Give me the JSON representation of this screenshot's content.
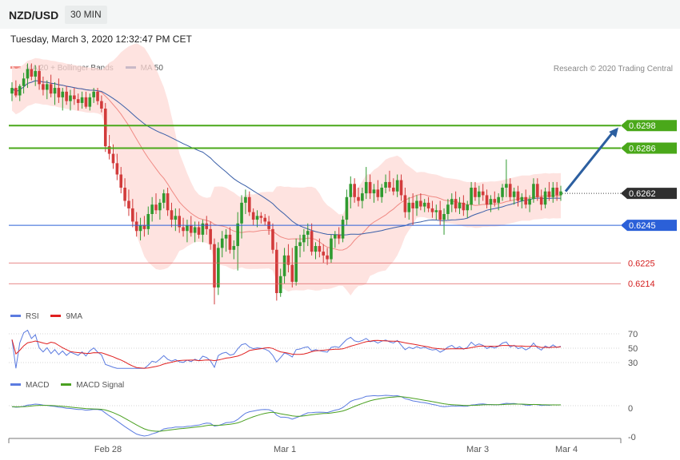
{
  "header": {
    "symbol": "NZD/USD",
    "timeframe": "30 MIN",
    "datetime": "Tuesday, March 3, 2020 12:32:47 PM CET",
    "credit": "Research © 2020 Trading Central"
  },
  "legends": {
    "price": [
      {
        "label": "MA 20 + Bollinger Bands",
        "color": "#f08a84"
      },
      {
        "label": "MA 50",
        "color": "#2c5a9a"
      }
    ],
    "rsi": [
      {
        "label": "RSI",
        "color": "#5b7be0"
      },
      {
        "label": "9MA",
        "color": "#e02020"
      }
    ],
    "macd": [
      {
        "label": "MACD",
        "color": "#5b7be0"
      },
      {
        "label": "MACD Signal",
        "color": "#4aa020"
      }
    ]
  },
  "colors": {
    "up": "#2f9a2f",
    "down": "#d23b3b",
    "bands": "#fdd9d6",
    "ma20": "#f08a84",
    "ma50": "#3a5fa8",
    "resistance": "#4aa81a",
    "support": "#2b60d8",
    "support_weak": "#e06060",
    "arrow": "#2c5fa0",
    "current": "#333333"
  },
  "chart_data": {
    "type": "candlestick",
    "x_tick_labels": [
      "Feb 28",
      "Mar 1",
      "Mar 3",
      "Mar 4"
    ],
    "price_ylim": [
      0.6195,
      0.6335
    ],
    "levels": [
      {
        "value": "0.6298",
        "kind": "resistance"
      },
      {
        "value": "0.6286",
        "kind": "resistance"
      },
      {
        "value": "0.6262",
        "kind": "current"
      },
      {
        "value": "0.6245",
        "kind": "support"
      },
      {
        "value": "0.6225",
        "kind": "support_weak"
      },
      {
        "value": "0.6214",
        "kind": "support_weak"
      }
    ],
    "forecast": {
      "from": 0.6263,
      "to": 0.6297,
      "direction": "up"
    },
    "rsi": {
      "levels": [
        "70",
        "50",
        "30"
      ],
      "ylim": [
        15,
        80
      ]
    },
    "macd": {
      "levels": [
        "0",
        "-0"
      ]
    },
    "candles": [
      [
        0.6315,
        0.6321,
        0.6311,
        0.6318
      ],
      [
        0.6318,
        0.6322,
        0.6313,
        0.6314
      ],
      [
        0.6314,
        0.632,
        0.6311,
        0.6319
      ],
      [
        0.6319,
        0.6326,
        0.6315,
        0.6323
      ],
      [
        0.6323,
        0.6331,
        0.6318,
        0.6328
      ],
      [
        0.6328,
        0.6331,
        0.6322,
        0.6324
      ],
      [
        0.6324,
        0.633,
        0.6319,
        0.6327
      ],
      [
        0.6327,
        0.633,
        0.6317,
        0.632
      ],
      [
        0.632,
        0.6324,
        0.6314,
        0.6317
      ],
      [
        0.6317,
        0.6322,
        0.6312,
        0.632
      ],
      [
        0.632,
        0.6325,
        0.6313,
        0.6315
      ],
      [
        0.6315,
        0.6321,
        0.6309,
        0.6318
      ],
      [
        0.6318,
        0.6323,
        0.631,
        0.6313
      ],
      [
        0.6313,
        0.6318,
        0.6306,
        0.6316
      ],
      [
        0.6316,
        0.6319,
        0.6309,
        0.6311
      ],
      [
        0.6311,
        0.6317,
        0.6306,
        0.6314
      ],
      [
        0.6314,
        0.6318,
        0.6309,
        0.6312
      ],
      [
        0.6312,
        0.6315,
        0.6306,
        0.631
      ],
      [
        0.631,
        0.6316,
        0.6307,
        0.6313
      ],
      [
        0.6313,
        0.6316,
        0.6307,
        0.6308
      ],
      [
        0.6308,
        0.6315,
        0.6306,
        0.6313
      ],
      [
        0.6313,
        0.6318,
        0.631,
        0.6316
      ],
      [
        0.6316,
        0.6318,
        0.6309,
        0.6311
      ],
      [
        0.6311,
        0.6314,
        0.6305,
        0.6307
      ],
      [
        0.6307,
        0.631,
        0.6284,
        0.6287
      ],
      [
        0.6287,
        0.6293,
        0.628,
        0.6283
      ],
      [
        0.6283,
        0.6288,
        0.6275,
        0.6278
      ],
      [
        0.6278,
        0.6283,
        0.6269,
        0.6272
      ],
      [
        0.6272,
        0.6276,
        0.6262,
        0.6265
      ],
      [
        0.6265,
        0.627,
        0.6255,
        0.6258
      ],
      [
        0.6258,
        0.6264,
        0.625,
        0.6254
      ],
      [
        0.6254,
        0.6259,
        0.6244,
        0.6247
      ],
      [
        0.6247,
        0.6252,
        0.6239,
        0.6242
      ],
      [
        0.6242,
        0.6249,
        0.6237,
        0.6245
      ],
      [
        0.6245,
        0.625,
        0.6239,
        0.6243
      ],
      [
        0.6243,
        0.6255,
        0.624,
        0.6251
      ],
      [
        0.6251,
        0.626,
        0.6247,
        0.6256
      ],
      [
        0.6256,
        0.6262,
        0.6251,
        0.6253
      ],
      [
        0.6253,
        0.6259,
        0.6248,
        0.6257
      ],
      [
        0.6257,
        0.6264,
        0.6254,
        0.6262
      ],
      [
        0.6262,
        0.6265,
        0.625,
        0.6253
      ],
      [
        0.6253,
        0.6257,
        0.6244,
        0.6248
      ],
      [
        0.6248,
        0.6254,
        0.6242,
        0.625
      ],
      [
        0.625,
        0.6254,
        0.6241,
        0.6244
      ],
      [
        0.6244,
        0.6249,
        0.6239,
        0.6242
      ],
      [
        0.6242,
        0.6248,
        0.6236,
        0.6245
      ],
      [
        0.6245,
        0.625,
        0.6239,
        0.6241
      ],
      [
        0.6241,
        0.6247,
        0.6236,
        0.6244
      ],
      [
        0.6244,
        0.6247,
        0.6238,
        0.624
      ],
      [
        0.624,
        0.6248,
        0.6236,
        0.6246
      ],
      [
        0.6246,
        0.625,
        0.624,
        0.6243
      ],
      [
        0.6243,
        0.6247,
        0.6232,
        0.6235
      ],
      [
        0.6235,
        0.6238,
        0.6203,
        0.6212
      ],
      [
        0.6212,
        0.6236,
        0.6208,
        0.6233
      ],
      [
        0.6233,
        0.6242,
        0.6228,
        0.6238
      ],
      [
        0.6238,
        0.6243,
        0.6231,
        0.624
      ],
      [
        0.624,
        0.6244,
        0.623,
        0.6232
      ],
      [
        0.6232,
        0.6237,
        0.6227,
        0.6234
      ],
      [
        0.6234,
        0.6252,
        0.6221,
        0.6246
      ],
      [
        0.6246,
        0.6261,
        0.6238,
        0.6257
      ],
      [
        0.6257,
        0.6264,
        0.6251,
        0.626
      ],
      [
        0.626,
        0.6263,
        0.625,
        0.6252
      ],
      [
        0.6252,
        0.6254,
        0.6245,
        0.6248
      ],
      [
        0.6248,
        0.6253,
        0.6244,
        0.625
      ],
      [
        0.625,
        0.6252,
        0.6246,
        0.6249
      ],
      [
        0.6249,
        0.6251,
        0.6245,
        0.6247
      ],
      [
        0.6247,
        0.625,
        0.624,
        0.6243
      ],
      [
        0.6243,
        0.6246,
        0.623,
        0.6232
      ],
      [
        0.6232,
        0.6236,
        0.6205,
        0.6209
      ],
      [
        0.6209,
        0.6222,
        0.6207,
        0.6218
      ],
      [
        0.6218,
        0.6233,
        0.6214,
        0.6229
      ],
      [
        0.6229,
        0.6235,
        0.622,
        0.6224
      ],
      [
        0.6224,
        0.6233,
        0.6212,
        0.6215
      ],
      [
        0.6215,
        0.6238,
        0.6213,
        0.6234
      ],
      [
        0.6234,
        0.624,
        0.6228,
        0.6236
      ],
      [
        0.6236,
        0.6243,
        0.6231,
        0.624
      ],
      [
        0.624,
        0.6246,
        0.6234,
        0.6242
      ],
      [
        0.6242,
        0.6246,
        0.6229,
        0.6231
      ],
      [
        0.6231,
        0.6236,
        0.6227,
        0.6234
      ],
      [
        0.6234,
        0.6238,
        0.6228,
        0.6231
      ],
      [
        0.6231,
        0.6235,
        0.6225,
        0.6229
      ],
      [
        0.6229,
        0.6233,
        0.6224,
        0.6227
      ],
      [
        0.6227,
        0.624,
        0.6225,
        0.6238
      ],
      [
        0.6238,
        0.6242,
        0.6233,
        0.624
      ],
      [
        0.624,
        0.6244,
        0.6235,
        0.6238
      ],
      [
        0.6238,
        0.625,
        0.6236,
        0.6248
      ],
      [
        0.6248,
        0.6264,
        0.6245,
        0.626
      ],
      [
        0.626,
        0.6271,
        0.6254,
        0.6267
      ],
      [
        0.6267,
        0.627,
        0.6257,
        0.626
      ],
      [
        0.626,
        0.6265,
        0.6255,
        0.6258
      ],
      [
        0.6258,
        0.6265,
        0.6254,
        0.6262
      ],
      [
        0.6262,
        0.6276,
        0.6259,
        0.6268
      ],
      [
        0.6268,
        0.6272,
        0.6259,
        0.6262
      ],
      [
        0.6262,
        0.6267,
        0.6257,
        0.6264
      ],
      [
        0.6264,
        0.6269,
        0.6258,
        0.626
      ],
      [
        0.626,
        0.6267,
        0.6257,
        0.6265
      ],
      [
        0.6265,
        0.6272,
        0.6262,
        0.6268
      ],
      [
        0.6268,
        0.6274,
        0.6263,
        0.6265
      ],
      [
        0.6265,
        0.627,
        0.6261,
        0.6263
      ],
      [
        0.6263,
        0.6272,
        0.626,
        0.6269
      ],
      [
        0.6269,
        0.6272,
        0.6258,
        0.6261
      ],
      [
        0.6261,
        0.6265,
        0.6249,
        0.6252
      ],
      [
        0.6252,
        0.626,
        0.6248,
        0.6257
      ],
      [
        0.6257,
        0.6262,
        0.6245,
        0.6254
      ],
      [
        0.6254,
        0.6261,
        0.625,
        0.6258
      ],
      [
        0.6258,
        0.6262,
        0.6253,
        0.6255
      ],
      [
        0.6255,
        0.6259,
        0.6252,
        0.6257
      ],
      [
        0.6257,
        0.626,
        0.6252,
        0.6254
      ],
      [
        0.6254,
        0.6258,
        0.6249,
        0.6252
      ],
      [
        0.6252,
        0.6256,
        0.6248,
        0.6253
      ],
      [
        0.6253,
        0.6258,
        0.6245,
        0.6248
      ],
      [
        0.6248,
        0.6254,
        0.624,
        0.6251
      ],
      [
        0.6251,
        0.6259,
        0.6248,
        0.6256
      ],
      [
        0.6256,
        0.6262,
        0.6252,
        0.6259
      ],
      [
        0.6259,
        0.6263,
        0.6252,
        0.6254
      ],
      [
        0.6254,
        0.626,
        0.6251,
        0.6257
      ],
      [
        0.6257,
        0.6261,
        0.625,
        0.6253
      ],
      [
        0.6253,
        0.6258,
        0.6249,
        0.6256
      ],
      [
        0.6256,
        0.6268,
        0.6253,
        0.6265
      ],
      [
        0.6265,
        0.6268,
        0.6258,
        0.626
      ],
      [
        0.626,
        0.6266,
        0.6256,
        0.6263
      ],
      [
        0.6263,
        0.6267,
        0.6258,
        0.6261
      ],
      [
        0.6261,
        0.6264,
        0.6254,
        0.6256
      ],
      [
        0.6256,
        0.6261,
        0.6252,
        0.6259
      ],
      [
        0.6259,
        0.6263,
        0.6255,
        0.6257
      ],
      [
        0.6257,
        0.6262,
        0.6253,
        0.626
      ],
      [
        0.626,
        0.6267,
        0.6258,
        0.6265
      ],
      [
        0.6265,
        0.628,
        0.626,
        0.6267
      ],
      [
        0.6267,
        0.627,
        0.6258,
        0.626
      ],
      [
        0.626,
        0.6265,
        0.6256,
        0.6263
      ],
      [
        0.6263,
        0.6266,
        0.6255,
        0.6258
      ],
      [
        0.6258,
        0.6262,
        0.6254,
        0.626
      ],
      [
        0.626,
        0.6264,
        0.6254,
        0.6256
      ],
      [
        0.6256,
        0.6261,
        0.6252,
        0.6259
      ],
      [
        0.6259,
        0.627,
        0.6257,
        0.6267
      ],
      [
        0.6267,
        0.627,
        0.6258,
        0.626
      ],
      [
        0.626,
        0.6264,
        0.6253,
        0.6256
      ],
      [
        0.6256,
        0.6265,
        0.6254,
        0.6263
      ],
      [
        0.6263,
        0.6268,
        0.6258,
        0.626
      ],
      [
        0.626,
        0.6268,
        0.6257,
        0.6265
      ],
      [
        0.6265,
        0.6268,
        0.6258,
        0.6261
      ],
      [
        0.6261,
        0.6266,
        0.6258,
        0.6263
      ]
    ]
  }
}
